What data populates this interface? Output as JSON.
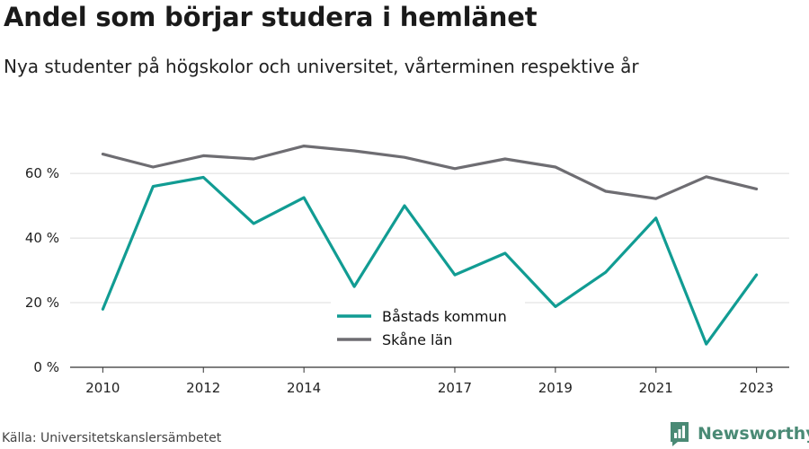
{
  "header": {
    "title": "Andel som börjar studera i hemlänet",
    "subtitle": "Nya studenter på högskolor och universitet, vårterminen respektive år"
  },
  "footer": {
    "source": "Källa: Universitetskanslersämbetet",
    "brand": "Newsworthy",
    "brand_icon": "newsworthy-logo-icon",
    "brand_color": "#4a8a75"
  },
  "chart_data": {
    "type": "line",
    "x": [
      2010,
      2011,
      2012,
      2013,
      2014,
      2015,
      2016,
      2017,
      2018,
      2019,
      2020,
      2021,
      2022,
      2023
    ],
    "xticks": [
      2010,
      2012,
      2014,
      2017,
      2019,
      2021,
      2023
    ],
    "xtick_labels": [
      "2010",
      "2012",
      "2014",
      "2017",
      "2019",
      "2021",
      "2023"
    ],
    "xlim": [
      2009.35,
      2023.65
    ],
    "ylim": [
      0,
      72
    ],
    "yticks": [
      0,
      20,
      40,
      60
    ],
    "ytick_labels": [
      "0 %",
      "20 %",
      "40 %",
      "60 %"
    ],
    "grid": true,
    "legend_position": "center",
    "series": [
      {
        "name": "Båstads kommun",
        "color": "#119c93",
        "values": [
          18,
          56,
          58.8,
          44.5,
          52.5,
          25,
          50,
          28.6,
          35.3,
          18.8,
          29.4,
          46.2,
          7.2,
          28.6
        ]
      },
      {
        "name": "Skåne län",
        "color": "#6e6d72",
        "values": [
          66,
          62,
          65.5,
          64.5,
          68.5,
          67,
          65,
          61.5,
          64.5,
          62,
          54.5,
          52.2,
          59,
          55.2
        ]
      }
    ]
  }
}
